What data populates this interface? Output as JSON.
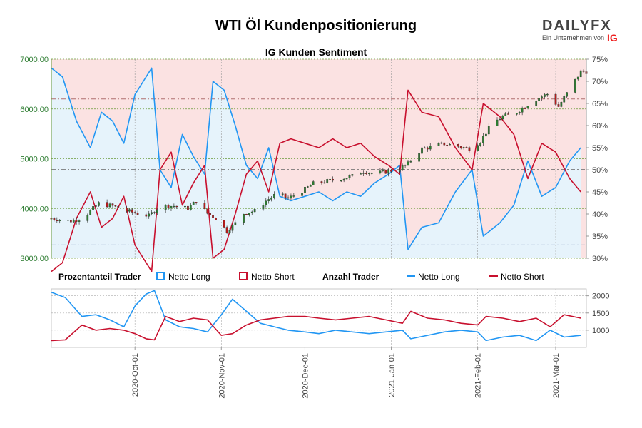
{
  "header": {
    "title": "WTI Öl Kundenpositionierung",
    "subtitle": "IG Kunden Sentiment"
  },
  "brand": {
    "name": "DAILYFX",
    "tagline": "Ein Unternehmen von",
    "ig": "IG"
  },
  "legend": {
    "pct_title": "Prozentanteil Trader",
    "pct_long": "Netto Long",
    "pct_short": "Netto Short",
    "count_title": "Anzahl Trader",
    "count_long": "Netto Long",
    "count_short": "Netto Short"
  },
  "colors": {
    "long": "#2196f3",
    "short": "#c8102e",
    "long_fill": "#e6f3fb",
    "short_fill": "#fbe2e2",
    "candle_up": "#2e7d32",
    "candle_down": "#b71c1c"
  },
  "chart_data": [
    {
      "type": "line",
      "name": "price_sentiment",
      "x_ticks": [
        "2020-Oct-01",
        "2020-Nov-01",
        "2020-Dec-01",
        "2021-Jan-01",
        "2021-Feb-01",
        "2021-Mar-01"
      ],
      "x_range": [
        "2020-09-01",
        "2021-03-12"
      ],
      "y_left_ticks": [
        "3000.00",
        "4000.00",
        "5000.00",
        "6000.00",
        "7000.00"
      ],
      "y_left_range": [
        3000,
        7000
      ],
      "y_right_ticks": [
        "30%",
        "35%",
        "40%",
        "45%",
        "50%",
        "55%",
        "60%",
        "65%",
        "70%",
        "75%"
      ],
      "y_right_range": [
        30,
        75
      ],
      "reference_lines_pct": [
        33,
        50,
        66
      ],
      "price_close_points": [
        [
          "2020-09-01",
          3800
        ],
        [
          "2020-09-08",
          3750
        ],
        [
          "2020-09-12",
          3800
        ],
        [
          "2020-09-18",
          4100
        ],
        [
          "2020-09-23",
          4050
        ],
        [
          "2020-09-28",
          3950
        ],
        [
          "2020-10-02",
          3900
        ],
        [
          "2020-10-06",
          3850
        ],
        [
          "2020-10-10",
          4050
        ],
        [
          "2020-10-15",
          4050
        ],
        [
          "2020-10-20",
          4000
        ],
        [
          "2020-10-23",
          4150
        ],
        [
          "2020-10-27",
          3900
        ],
        [
          "2020-10-30",
          3800
        ],
        [
          "2020-11-03",
          3550
        ],
        [
          "2020-11-06",
          3700
        ],
        [
          "2020-11-09",
          3900
        ],
        [
          "2020-11-13",
          3950
        ],
        [
          "2020-11-17",
          4150
        ],
        [
          "2020-11-21",
          4300
        ],
        [
          "2020-11-25",
          4200
        ],
        [
          "2020-11-30",
          4350
        ],
        [
          "2020-12-04",
          4500
        ],
        [
          "2020-12-09",
          4550
        ],
        [
          "2020-12-14",
          4600
        ],
        [
          "2020-12-18",
          4650
        ],
        [
          "2020-12-22",
          4750
        ],
        [
          "2020-12-26",
          4700
        ],
        [
          "2020-12-31",
          4750
        ],
        [
          "2021-01-04",
          4800
        ],
        [
          "2021-01-07",
          4900
        ],
        [
          "2021-01-12",
          5200
        ],
        [
          "2021-01-16",
          5250
        ],
        [
          "2021-01-20",
          5300
        ],
        [
          "2021-01-25",
          5250
        ],
        [
          "2021-01-29",
          5200
        ],
        [
          "2021-02-02",
          5350
        ],
        [
          "2021-02-06",
          5700
        ],
        [
          "2021-02-10",
          5850
        ],
        [
          "2021-02-14",
          5900
        ],
        [
          "2021-02-18",
          6050
        ],
        [
          "2021-02-22",
          6200
        ],
        [
          "2021-02-26",
          6300
        ],
        [
          "2021-03-02",
          6050
        ],
        [
          "2021-03-06",
          6400
        ],
        [
          "2021-03-10",
          6750
        ]
      ],
      "pct_long_points": [
        [
          "2020-09-01",
          73
        ],
        [
          "2020-09-05",
          71
        ],
        [
          "2020-09-10",
          61
        ],
        [
          "2020-09-15",
          55
        ],
        [
          "2020-09-19",
          63
        ],
        [
          "2020-09-23",
          61
        ],
        [
          "2020-09-27",
          56
        ],
        [
          "2020-10-01",
          67
        ],
        [
          "2020-10-04",
          70
        ],
        [
          "2020-10-07",
          73
        ],
        [
          "2020-10-10",
          50
        ],
        [
          "2020-10-14",
          46
        ],
        [
          "2020-10-18",
          58
        ],
        [
          "2020-10-22",
          53
        ],
        [
          "2020-10-26",
          49
        ],
        [
          "2020-10-29",
          70
        ],
        [
          "2020-11-02",
          68
        ],
        [
          "2020-11-06",
          60
        ],
        [
          "2020-11-10",
          51
        ],
        [
          "2020-11-14",
          48
        ],
        [
          "2020-11-18",
          55
        ],
        [
          "2020-11-22",
          44
        ],
        [
          "2020-11-26",
          43
        ],
        [
          "2020-12-01",
          44
        ],
        [
          "2020-12-06",
          45
        ],
        [
          "2020-12-11",
          43
        ],
        [
          "2020-12-16",
          45
        ],
        [
          "2020-12-21",
          44
        ],
        [
          "2020-12-26",
          47
        ],
        [
          "2020-12-31",
          49
        ],
        [
          "2021-01-04",
          51
        ],
        [
          "2021-01-07",
          32
        ],
        [
          "2021-01-12",
          37
        ],
        [
          "2021-01-18",
          38
        ],
        [
          "2021-01-24",
          45
        ],
        [
          "2021-01-30",
          50
        ],
        [
          "2021-02-03",
          35
        ],
        [
          "2021-02-09",
          38
        ],
        [
          "2021-02-14",
          42
        ],
        [
          "2021-02-19",
          52
        ],
        [
          "2021-02-24",
          44
        ],
        [
          "2021-03-01",
          46
        ],
        [
          "2021-03-06",
          52
        ],
        [
          "2021-03-10",
          55
        ]
      ],
      "pct_short_points": [
        [
          "2020-09-01",
          27
        ],
        [
          "2020-09-05",
          29
        ],
        [
          "2020-09-10",
          39
        ],
        [
          "2020-09-15",
          45
        ],
        [
          "2020-09-19",
          37
        ],
        [
          "2020-09-23",
          39
        ],
        [
          "2020-09-27",
          44
        ],
        [
          "2020-10-01",
          33
        ],
        [
          "2020-10-04",
          30
        ],
        [
          "2020-10-07",
          27
        ],
        [
          "2020-10-10",
          50
        ],
        [
          "2020-10-14",
          54
        ],
        [
          "2020-10-18",
          42
        ],
        [
          "2020-10-22",
          47
        ],
        [
          "2020-10-26",
          51
        ],
        [
          "2020-10-29",
          30
        ],
        [
          "2020-11-02",
          32
        ],
        [
          "2020-11-06",
          40
        ],
        [
          "2020-11-10",
          49
        ],
        [
          "2020-11-14",
          52
        ],
        [
          "2020-11-18",
          45
        ],
        [
          "2020-11-22",
          56
        ],
        [
          "2020-11-26",
          57
        ],
        [
          "2020-12-01",
          56
        ],
        [
          "2020-12-06",
          55
        ],
        [
          "2020-12-11",
          57
        ],
        [
          "2020-12-16",
          55
        ],
        [
          "2020-12-21",
          56
        ],
        [
          "2020-12-26",
          53
        ],
        [
          "2020-12-31",
          51
        ],
        [
          "2021-01-04",
          49
        ],
        [
          "2021-01-07",
          68
        ],
        [
          "2021-01-12",
          63
        ],
        [
          "2021-01-18",
          62
        ],
        [
          "2021-01-24",
          55
        ],
        [
          "2021-01-30",
          50
        ],
        [
          "2021-02-03",
          65
        ],
        [
          "2021-02-09",
          62
        ],
        [
          "2021-02-14",
          58
        ],
        [
          "2021-02-19",
          48
        ],
        [
          "2021-02-24",
          56
        ],
        [
          "2021-03-01",
          54
        ],
        [
          "2021-03-06",
          48
        ],
        [
          "2021-03-10",
          45
        ]
      ]
    },
    {
      "type": "line",
      "name": "trader_count",
      "y_ticks": [
        "1000",
        "1500",
        "2000"
      ],
      "y_range": [
        500,
        2200
      ],
      "count_long_points": [
        [
          "2020-09-01",
          2100
        ],
        [
          "2020-09-06",
          1950
        ],
        [
          "2020-09-12",
          1400
        ],
        [
          "2020-09-17",
          1450
        ],
        [
          "2020-09-22",
          1300
        ],
        [
          "2020-09-27",
          1100
        ],
        [
          "2020-10-01",
          1700
        ],
        [
          "2020-10-05",
          2050
        ],
        [
          "2020-10-08",
          2150
        ],
        [
          "2020-10-12",
          1300
        ],
        [
          "2020-10-17",
          1100
        ],
        [
          "2020-10-22",
          1050
        ],
        [
          "2020-10-27",
          950
        ],
        [
          "2020-11-01",
          1450
        ],
        [
          "2020-11-05",
          1900
        ],
        [
          "2020-11-10",
          1550
        ],
        [
          "2020-11-15",
          1200
        ],
        [
          "2020-11-20",
          1100
        ],
        [
          "2020-11-25",
          1000
        ],
        [
          "2020-12-01",
          950
        ],
        [
          "2020-12-06",
          900
        ],
        [
          "2020-12-12",
          1000
        ],
        [
          "2020-12-18",
          950
        ],
        [
          "2020-12-24",
          900
        ],
        [
          "2020-12-30",
          950
        ],
        [
          "2021-01-05",
          1000
        ],
        [
          "2021-01-08",
          750
        ],
        [
          "2021-01-14",
          850
        ],
        [
          "2021-01-20",
          950
        ],
        [
          "2021-01-26",
          1000
        ],
        [
          "2021-02-01",
          950
        ],
        [
          "2021-02-04",
          700
        ],
        [
          "2021-02-10",
          800
        ],
        [
          "2021-02-16",
          850
        ],
        [
          "2021-02-22",
          700
        ],
        [
          "2021-02-27",
          1000
        ],
        [
          "2021-03-04",
          800
        ],
        [
          "2021-03-10",
          850
        ]
      ],
      "count_short_points": [
        [
          "2020-09-01",
          700
        ],
        [
          "2020-09-06",
          720
        ],
        [
          "2020-09-12",
          1150
        ],
        [
          "2020-09-17",
          1000
        ],
        [
          "2020-09-22",
          1050
        ],
        [
          "2020-09-27",
          1000
        ],
        [
          "2020-10-01",
          900
        ],
        [
          "2020-10-05",
          750
        ],
        [
          "2020-10-08",
          720
        ],
        [
          "2020-10-12",
          1400
        ],
        [
          "2020-10-17",
          1250
        ],
        [
          "2020-10-22",
          1350
        ],
        [
          "2020-10-27",
          1300
        ],
        [
          "2020-11-01",
          850
        ],
        [
          "2020-11-05",
          900
        ],
        [
          "2020-11-10",
          1150
        ],
        [
          "2020-11-15",
          1300
        ],
        [
          "2020-11-20",
          1350
        ],
        [
          "2020-11-25",
          1400
        ],
        [
          "2020-12-01",
          1400
        ],
        [
          "2020-12-06",
          1350
        ],
        [
          "2020-12-12",
          1300
        ],
        [
          "2020-12-18",
          1350
        ],
        [
          "2020-12-24",
          1400
        ],
        [
          "2020-12-30",
          1300
        ],
        [
          "2021-01-05",
          1200
        ],
        [
          "2021-01-08",
          1550
        ],
        [
          "2021-01-14",
          1350
        ],
        [
          "2021-01-20",
          1300
        ],
        [
          "2021-01-26",
          1200
        ],
        [
          "2021-02-01",
          1150
        ],
        [
          "2021-02-04",
          1400
        ],
        [
          "2021-02-10",
          1350
        ],
        [
          "2021-02-16",
          1250
        ],
        [
          "2021-02-22",
          1350
        ],
        [
          "2021-02-27",
          1100
        ],
        [
          "2021-03-04",
          1450
        ],
        [
          "2021-03-10",
          1350
        ]
      ]
    }
  ]
}
